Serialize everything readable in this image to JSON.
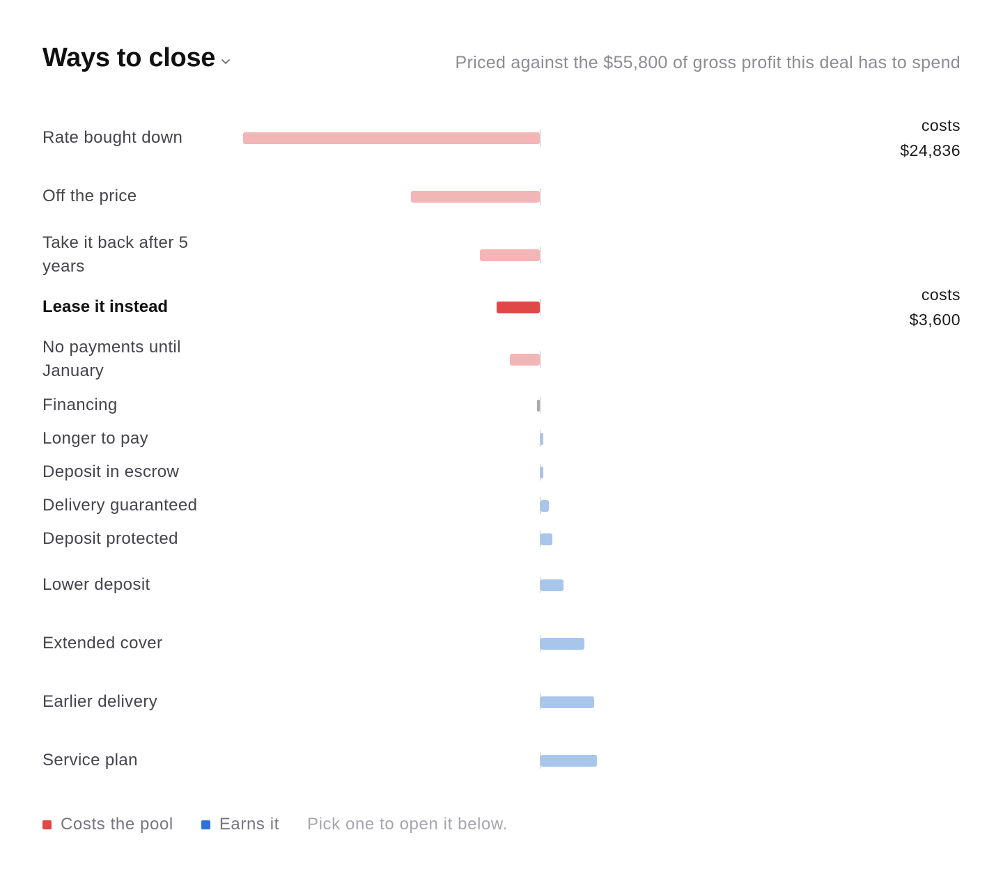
{
  "header": {
    "title": "Ways to close",
    "subtitle": "Priced against the $55,800 of gross profit this deal has to spend"
  },
  "colors": {
    "cost": "#e04848",
    "cost_muted": "#f3b6b6",
    "earn": "#2f72d6",
    "earn_muted": "#a8c6ec",
    "neutral": "#a9a9ae",
    "axis": "#c4c4c8"
  },
  "chart_data": {
    "type": "bar",
    "orientation": "horizontal",
    "baseline": 0,
    "units": "$",
    "categories": [
      "Rate bought down",
      "Off the price",
      "Take it back after 5 years",
      "Lease it instead",
      "No payments until January",
      "Financing",
      "Longer to pay",
      "Deposit in escrow",
      "Delivery guaranteed",
      "Deposit protected",
      "Lower deposit",
      "Extended cover",
      "Earlier delivery",
      "Service plan"
    ],
    "values": [
      -24836,
      -10800,
      -5000,
      -3600,
      -2500,
      -200,
      250,
      250,
      700,
      1000,
      1900,
      3700,
      4500,
      4750
    ],
    "kind": [
      "cost",
      "cost",
      "cost",
      "cost",
      "cost",
      "neutral",
      "earn",
      "earn",
      "earn",
      "earn",
      "earn",
      "earn",
      "earn",
      "earn"
    ],
    "selected_index": 3,
    "cost_notes": [
      {
        "index": 0,
        "label": "costs",
        "amount": "$24,836"
      },
      {
        "index": 3,
        "label": "costs",
        "amount": "$3,600"
      }
    ],
    "legend": [
      {
        "label": "Costs the pool",
        "kind": "cost"
      },
      {
        "label": "Earns it",
        "kind": "earn"
      }
    ]
  },
  "legend_hint": "Pick one to open it below."
}
